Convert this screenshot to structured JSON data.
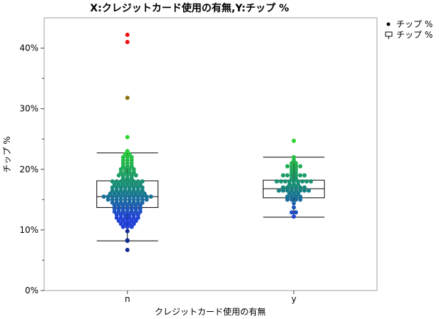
{
  "chart_data": {
    "type": "scatter",
    "title": "X:クレジットカード使用の有無,Y:チップ %",
    "xlabel": "クレジットカード使用の有無",
    "ylabel": "チップ %",
    "categories": [
      "n",
      "y"
    ],
    "ylim": [
      0,
      45
    ],
    "yticks": [
      {
        "value": 0,
        "label": "0%"
      },
      {
        "value": 10,
        "label": "10%"
      },
      {
        "value": 20,
        "label": "20%"
      },
      {
        "value": 30,
        "label": "30%"
      },
      {
        "value": 40,
        "label": "40%"
      }
    ],
    "grid": false,
    "legend_placement": "top-right",
    "legend": [
      {
        "label": "チップ %",
        "marker": "dot"
      },
      {
        "label": "チップ %",
        "marker": "box"
      }
    ],
    "colors": {
      "low": "#2142d6",
      "mid": "#16867c",
      "high": "#2ed62e",
      "dark_blue": "#122a8f",
      "olive": "#8a7313",
      "red": "#ee1111"
    },
    "boxplots": [
      {
        "category": "n",
        "whisker_low": 8.2,
        "q1": 13.7,
        "median": 15.5,
        "q3": 18.1,
        "whisker_high": 22.7
      },
      {
        "category": "y",
        "whisker_low": 12.1,
        "q1": 15.3,
        "median": 16.8,
        "q3": 18.2,
        "whisker_high": 22.0
      }
    ],
    "series": [
      {
        "category": "n",
        "outliers": [
          {
            "y": 42.2,
            "color": "red"
          },
          {
            "y": 41.0,
            "color": "red"
          },
          {
            "y": 31.8,
            "color": "olive"
          },
          {
            "y": 25.3,
            "color": "high"
          }
        ],
        "values": [
          6.7,
          8.2,
          8.3,
          9.8,
          10.5,
          10.5,
          10.5,
          11.0,
          11.0,
          11.0,
          11.0,
          11.5,
          11.5,
          11.5,
          11.5,
          11.5,
          12.0,
          12.0,
          12.0,
          12.0,
          12.0,
          12.0,
          12.5,
          12.5,
          12.5,
          12.5,
          12.5,
          12.5,
          13.0,
          13.0,
          13.0,
          13.0,
          13.0,
          13.0,
          13.0,
          13.5,
          13.5,
          13.5,
          13.5,
          13.5,
          13.5,
          13.5,
          14.0,
          14.0,
          14.0,
          14.0,
          14.0,
          14.0,
          14.0,
          14.5,
          14.5,
          14.5,
          14.5,
          14.5,
          14.5,
          14.5,
          14.5,
          15.0,
          15.0,
          15.0,
          15.0,
          15.0,
          15.0,
          15.0,
          15.0,
          15.0,
          15.0,
          15.5,
          15.5,
          15.5,
          15.5,
          15.5,
          15.5,
          15.5,
          15.5,
          15.5,
          15.5,
          15.5,
          15.5,
          16.0,
          16.0,
          16.0,
          16.0,
          16.0,
          16.0,
          16.0,
          16.0,
          16.0,
          16.5,
          16.5,
          16.5,
          16.5,
          16.5,
          16.5,
          16.5,
          16.5,
          17.0,
          17.0,
          17.0,
          17.0,
          17.0,
          17.0,
          17.0,
          17.0,
          17.5,
          17.5,
          17.5,
          17.5,
          17.5,
          17.5,
          17.5,
          18.0,
          18.0,
          18.0,
          18.0,
          18.0,
          18.0,
          18.0,
          18.0,
          18.5,
          18.5,
          18.5,
          19.0,
          19.0,
          19.0,
          19.0,
          19.0,
          19.5,
          19.5,
          19.5,
          19.5,
          20.0,
          20.0,
          20.0,
          20.0,
          20.5,
          20.5,
          20.5,
          21.0,
          21.0,
          21.0,
          21.5,
          21.5,
          21.5,
          22.0,
          22.0,
          22.0,
          22.5,
          22.5,
          23.0
        ]
      },
      {
        "category": "y",
        "outliers": [
          {
            "y": 24.7,
            "color": "high"
          }
        ],
        "values": [
          12.2,
          12.9,
          12.9,
          13.7,
          14.4,
          15.0,
          15.0,
          15.0,
          15.0,
          15.5,
          15.5,
          15.5,
          15.5,
          16.0,
          16.0,
          16.0,
          16.5,
          16.5,
          16.5,
          16.5,
          16.5,
          16.5,
          16.5,
          16.5,
          17.0,
          17.0,
          17.0,
          17.0,
          17.0,
          17.0,
          17.5,
          17.5,
          17.5,
          18.0,
          18.0,
          18.0,
          18.0,
          18.0,
          18.0,
          18.0,
          18.0,
          18.0,
          18.5,
          18.5,
          19.0,
          19.0,
          19.0,
          19.0,
          19.0,
          19.0,
          19.5,
          19.5,
          20.0,
          20.0,
          20.5,
          20.5,
          20.5,
          20.5,
          21.0,
          21.0,
          21.5,
          22.0
        ]
      }
    ]
  }
}
